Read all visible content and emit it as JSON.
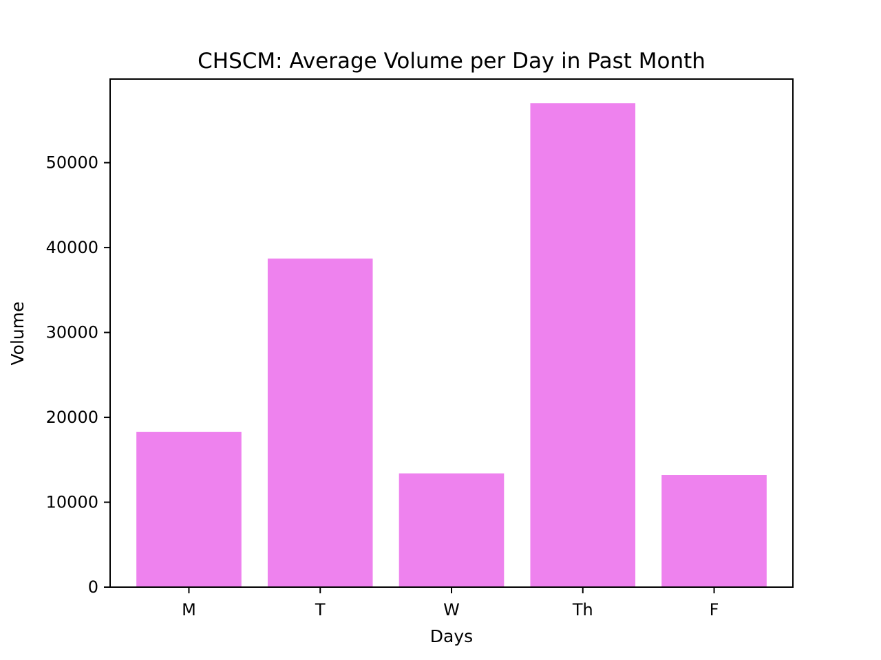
{
  "chart_data": {
    "type": "bar",
    "title": "CHSCM: Average Volume per Day in Past Month",
    "xlabel": "Days",
    "ylabel": "Volume",
    "categories": [
      "M",
      "T",
      "W",
      "Th",
      "F"
    ],
    "values": [
      18300,
      38700,
      13400,
      57000,
      13200
    ],
    "ylim": [
      0,
      59850
    ],
    "yticks": [
      0,
      10000,
      20000,
      30000,
      40000,
      50000
    ],
    "bar_color": "#EE82EE",
    "grid": false,
    "legend": "none"
  }
}
